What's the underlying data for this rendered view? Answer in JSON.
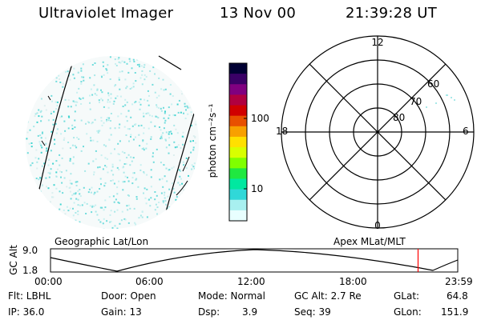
{
  "header": {
    "instrument": "Ultraviolet Imager",
    "date": "13 Nov 00",
    "time": "21:39:28 UT"
  },
  "colorbar": {
    "unit_label": "photon cm⁻²s⁻¹",
    "tick_labels": [
      "100",
      "10"
    ],
    "colors": [
      "#000033",
      "#3a0066",
      "#800080",
      "#b00040",
      "#d00000",
      "#e85000",
      "#f8a000",
      "#ffe000",
      "#d8ff00",
      "#80ff00",
      "#20e840",
      "#00e8a0",
      "#30d8d8",
      "#a8f0f0",
      "#e8ffff"
    ]
  },
  "polar_plot": {
    "mlt_labels": {
      "top": "12",
      "bottom": "0",
      "left": "18",
      "right": "6"
    },
    "mlat_labels": [
      "60",
      "70",
      "80"
    ],
    "caption": "Apex MLat/MLT"
  },
  "geo_plot": {
    "caption": "Geographic Lat/Lon"
  },
  "altitude_strip": {
    "ylabel": "GC Alt",
    "y_ticks": [
      "9.0",
      "1.8"
    ],
    "x_ticks": [
      "00:00",
      "06:00",
      "12:00",
      "18:00",
      "23:59"
    ],
    "marker_hour": 21.66,
    "marker_color": "#ff0000"
  },
  "info": {
    "flt": "Flt: LBHL",
    "ip": "IP: 36.0",
    "door": "Door: Open",
    "gain": "Gain: 13",
    "mode": "Mode: Normal",
    "dsp": "Dsp:",
    "dsp_value": "3.9",
    "gc_alt": "GC Alt: 2.7 Re",
    "seq": "Seq: 39",
    "glat": "GLat:",
    "glat_value": "64.8",
    "glon": "GLon:",
    "glon_value": "151.9"
  }
}
